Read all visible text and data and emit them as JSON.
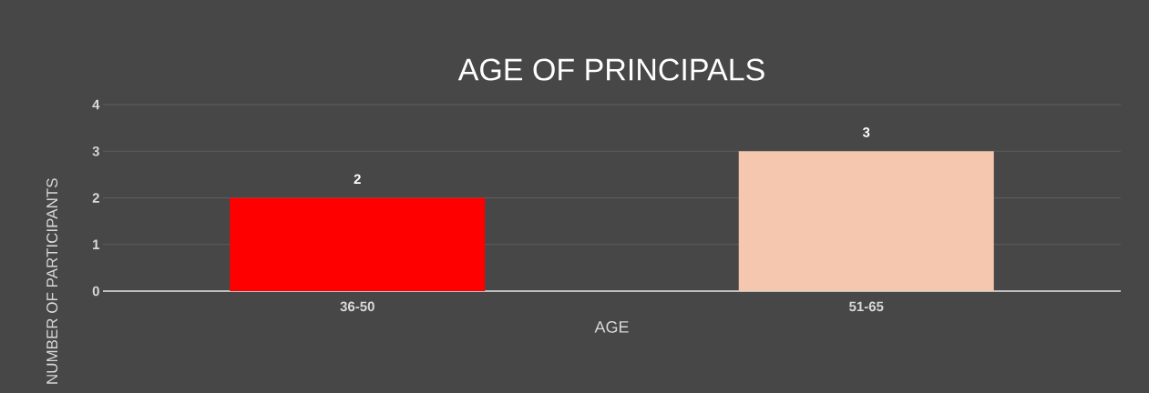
{
  "chart_data": {
    "type": "bar",
    "title": "AGE OF PRINCIPALS",
    "xlabel": "AGE",
    "ylabel": "NUMBER OF PARTICIPANTS",
    "categories": [
      "36-50",
      "51-65"
    ],
    "values": [
      2,
      3
    ],
    "colors": [
      "#ff0000",
      "#f5c7ae"
    ],
    "ylim": [
      0,
      4
    ],
    "yticks": [
      0,
      1,
      2,
      3,
      4
    ],
    "grid": "y",
    "data_labels": true
  }
}
